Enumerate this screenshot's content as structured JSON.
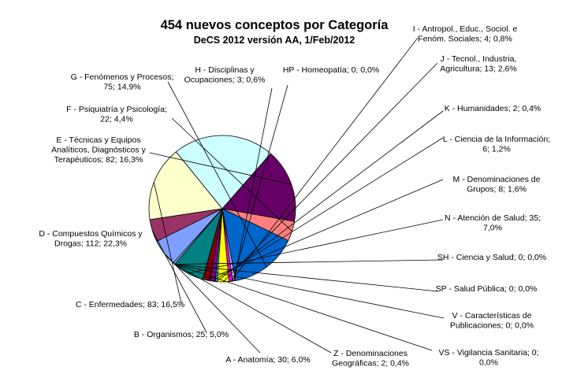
{
  "chart_data": {
    "type": "pie",
    "title": "454 nuevos conceptos por Categoría",
    "subtitle": "DeCS 2012 versión AA, 1/Feb/2012",
    "slices": [
      {
        "key": "A",
        "value": 30,
        "label_lines": [
          "A - Anatomía; 30; 6,0%"
        ],
        "color": "#7fa0ff"
      },
      {
        "key": "B",
        "value": 25,
        "label_lines": [
          "B - Organismos; 25; 5,0%"
        ],
        "color": "#993366"
      },
      {
        "key": "C",
        "value": 83,
        "label_lines": [
          "C - Enfermedades; 83; 16,5%"
        ],
        "color": "#ffffcc"
      },
      {
        "key": "D",
        "value": 112,
        "label_lines": [
          "D - Compuestos Químicos y",
          "Drogas; 112; 22,3%"
        ],
        "color": "#ccffff"
      },
      {
        "key": "E",
        "value": 82,
        "label_lines": [
          "E - Técnicas y Equipos",
          "Analíticos, Diagnósticos y",
          "Terapéuticos; 82; 16,3%"
        ],
        "color": "#660066"
      },
      {
        "key": "F",
        "value": 22,
        "label_lines": [
          "F - Psiquiatría y Psicología;",
          "22; 4,4%"
        ],
        "color": "#ff7f7f"
      },
      {
        "key": "G",
        "value": 75,
        "label_lines": [
          "G - Fenómenos y Procesos;",
          "75; 14,9%"
        ],
        "color": "#0066cc"
      },
      {
        "key": "H",
        "value": 3,
        "label_lines": [
          "H - Disciplinas y",
          "Ocupaciones; 3; 0,6%"
        ],
        "color": "#ccccff"
      },
      {
        "key": "HP",
        "value": 0,
        "label_lines": [
          "HP - Homeopatía; 0; 0,0%"
        ],
        "color": "#000080"
      },
      {
        "key": "I",
        "value": 4,
        "label_lines": [
          "I - Antropol., Educ., Sociol. e",
          "Fenóm. Sociales; 4; 0,8%"
        ],
        "color": "#ff00ff"
      },
      {
        "key": "J",
        "value": 13,
        "label_lines": [
          "J - Tecnol., Industria,",
          "Agricultura; 13; 2,6%"
        ],
        "color": "#ffff00"
      },
      {
        "key": "K",
        "value": 2,
        "label_lines": [
          "K - Humanidades; 2; 0,4%"
        ],
        "color": "#00ffff"
      },
      {
        "key": "L",
        "value": 6,
        "label_lines": [
          "L - Ciencia de la Información;",
          "6; 1,2%"
        ],
        "color": "#800080"
      },
      {
        "key": "M",
        "value": 8,
        "label_lines": [
          "M - Denominaciones de",
          "Grupos; 8; 1,6%"
        ],
        "color": "#800000"
      },
      {
        "key": "N",
        "value": 35,
        "label_lines": [
          "N - Atención de Salud; 35;",
          "7,0%"
        ],
        "color": "#008080"
      },
      {
        "key": "SH",
        "value": 0,
        "label_lines": [
          "SH - Ciencia y Salud; 0; 0,0%"
        ],
        "color": "#0000ff"
      },
      {
        "key": "SP",
        "value": 0,
        "label_lines": [
          "SP - Salud Pública; 0; 0,0%"
        ],
        "color": "#00ccff"
      },
      {
        "key": "V",
        "value": 0,
        "label_lines": [
          "V - Características de",
          "Publicaciones; 0; 0,0%"
        ],
        "color": "#ccffcc"
      },
      {
        "key": "VS",
        "value": 0,
        "label_lines": [
          "VS - Vigilancia Sanitaria; 0;",
          "0,0%"
        ],
        "color": "#ffff99"
      },
      {
        "key": "Z",
        "value": 2,
        "label_lines": [
          "Z - Denominaciones",
          "Geográficas; 2; 0,4%"
        ],
        "color": "#99ccff"
      }
    ]
  }
}
